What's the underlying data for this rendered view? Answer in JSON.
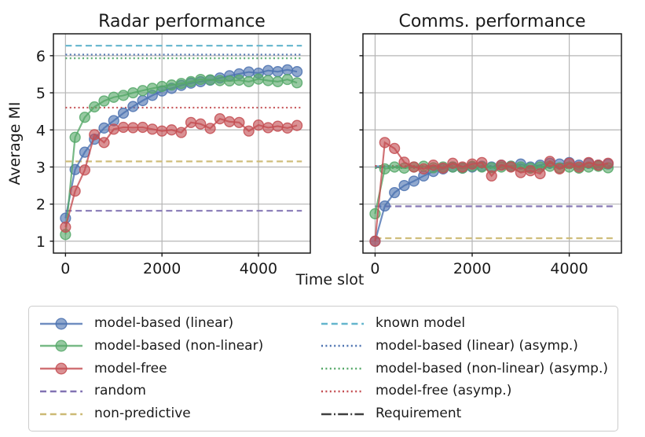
{
  "figure": {
    "xlabel": "Time slot",
    "ylabel": "Average MI"
  },
  "colors": {
    "blue": "#4C72B0",
    "green": "#55A868",
    "red": "#C44E52",
    "purple": "#8172B2",
    "yellow": "#CCB974",
    "cyan": "#64B5CD",
    "dark": "#3f3f3f",
    "grid": "#b5b5b5",
    "spine": "#1a1a1a",
    "text": "#1a1a1a",
    "legend_border": "#cccccc"
  },
  "chart_data": [
    {
      "type": "line",
      "title": "Radar performance",
      "xlabel": "Time slot",
      "ylabel": "Average MI",
      "xlim": [
        -250,
        5075
      ],
      "ylim": [
        0.68,
        6.59
      ],
      "xticks": [
        0,
        2000,
        4000
      ],
      "yticks": [
        1,
        2,
        3,
        4,
        5,
        6
      ],
      "grid": true,
      "show_ytick_labels": true,
      "x": [
        0,
        200,
        400,
        600,
        800,
        1000,
        1200,
        1400,
        1600,
        1800,
        2000,
        2200,
        2400,
        2600,
        2800,
        3000,
        3200,
        3400,
        3600,
        3800,
        4000,
        4200,
        4400,
        4600,
        4800
      ],
      "series": [
        {
          "name": "model-based (linear)",
          "color": "blue",
          "style": "marker",
          "values": [
            1.62,
            2.93,
            3.4,
            3.75,
            4.05,
            4.25,
            4.45,
            4.63,
            4.79,
            4.93,
            5.05,
            5.12,
            5.2,
            5.26,
            5.3,
            5.34,
            5.4,
            5.46,
            5.51,
            5.56,
            5.53,
            5.6,
            5.57,
            5.62,
            5.57
          ]
        },
        {
          "name": "model-based (non-linear)",
          "color": "green",
          "style": "marker",
          "values": [
            1.18,
            3.8,
            4.34,
            4.62,
            4.78,
            4.88,
            4.93,
            5.0,
            5.06,
            5.12,
            5.17,
            5.21,
            5.25,
            5.3,
            5.36,
            5.35,
            5.33,
            5.32,
            5.34,
            5.3,
            5.37,
            5.33,
            5.3,
            5.36,
            5.27
          ]
        },
        {
          "name": "model-free",
          "color": "red",
          "style": "marker",
          "values": [
            1.38,
            2.35,
            2.92,
            3.87,
            3.66,
            4.02,
            4.07,
            4.06,
            4.07,
            4.02,
            3.97,
            4.0,
            3.93,
            4.2,
            4.16,
            4.04,
            4.3,
            4.22,
            4.2,
            3.97,
            4.13,
            4.06,
            4.1,
            4.05,
            4.12
          ]
        }
      ],
      "hlines": [
        {
          "name": "known model",
          "color": "cyan",
          "style": "dashed",
          "y": 6.27,
          "x0": 0,
          "x1": 4900
        },
        {
          "name": "model-based (linear) (asymp.)",
          "color": "blue",
          "style": "dotted",
          "y": 6.03,
          "x0": 0,
          "x1": 4900
        },
        {
          "name": "model-based (non-linear) (asymp.)",
          "color": "green",
          "style": "dotted",
          "y": 5.93,
          "x0": 0,
          "x1": 4900
        },
        {
          "name": "model-free (asymp.)",
          "color": "red",
          "style": "dotted",
          "y": 4.6,
          "x0": 0,
          "x1": 4900
        },
        {
          "name": "non-predictive",
          "color": "yellow",
          "style": "dashed",
          "y": 3.15,
          "x0": 0,
          "x1": 4900
        },
        {
          "name": "random",
          "color": "purple",
          "style": "dashed",
          "y": 1.82,
          "x0": 0,
          "x1": 4900
        }
      ]
    },
    {
      "type": "line",
      "title": "Comms. performance",
      "xlabel": "Time slot",
      "ylabel": "",
      "xlim": [
        -250,
        5075
      ],
      "ylim": [
        0.68,
        6.59
      ],
      "xticks": [
        0,
        2000,
        4000
      ],
      "yticks": [
        1,
        2,
        3,
        4,
        5,
        6
      ],
      "grid": true,
      "show_ytick_labels": false,
      "x": [
        0,
        200,
        400,
        600,
        800,
        1000,
        1200,
        1400,
        1600,
        1800,
        2000,
        2200,
        2400,
        2600,
        2800,
        3000,
        3200,
        3400,
        3600,
        3800,
        4000,
        4200,
        4400,
        4600,
        4800
      ],
      "series": [
        {
          "name": "model-based (linear)",
          "color": "blue",
          "style": "marker",
          "values": [
            1.0,
            1.95,
            2.31,
            2.5,
            2.62,
            2.76,
            2.88,
            2.95,
            3.0,
            2.97,
            3.0,
            3.02,
            3.0,
            3.05,
            3.02,
            3.08,
            3.0,
            3.05,
            3.1,
            3.08,
            3.12,
            3.05,
            3.1,
            3.05,
            3.08
          ]
        },
        {
          "name": "model-based (non-linear)",
          "color": "green",
          "style": "marker",
          "values": [
            1.74,
            2.95,
            3.0,
            2.97,
            3.0,
            3.02,
            2.98,
            3.0,
            3.0,
            2.97,
            3.02,
            3.0,
            2.98,
            3.0,
            3.02,
            3.0,
            2.97,
            3.0,
            3.02,
            2.98,
            3.0,
            2.97,
            3.0,
            3.02,
            2.98
          ]
        },
        {
          "name": "model-free",
          "color": "red",
          "style": "marker",
          "values": [
            1.0,
            3.66,
            3.5,
            3.13,
            3.0,
            2.95,
            3.05,
            2.97,
            3.1,
            3.0,
            3.08,
            3.12,
            2.76,
            3.05,
            3.0,
            2.85,
            2.9,
            2.82,
            3.15,
            2.95,
            3.1,
            3.0,
            3.12,
            3.05,
            3.1
          ]
        }
      ],
      "hlines": [
        {
          "name": "Requirement",
          "color": "dark",
          "style": "dashdot",
          "y": 3.0,
          "x0": 0,
          "x1": 4900
        },
        {
          "name": "known model",
          "color": "cyan",
          "style": "dashed",
          "y": 3.02,
          "x0": 0,
          "x1": 4900
        },
        {
          "name": "model-based (linear) (asymp.)",
          "color": "blue",
          "style": "dotted",
          "y": 3.0,
          "x0": 0,
          "x1": 4900
        },
        {
          "name": "model-based (non-linear) (asymp.)",
          "color": "green",
          "style": "dotted",
          "y": 2.97,
          "x0": 0,
          "x1": 4900
        },
        {
          "name": "model-free (asymp.)",
          "color": "red",
          "style": "dotted",
          "y": 3.03,
          "x0": 0,
          "x1": 4900
        },
        {
          "name": "random",
          "color": "purple",
          "style": "dashed",
          "y": 1.94,
          "x0": 0,
          "x1": 4900
        },
        {
          "name": "non-predictive",
          "color": "yellow",
          "style": "dashed",
          "y": 1.08,
          "x0": 0,
          "x1": 4900
        }
      ]
    }
  ],
  "legend": {
    "columns": [
      [
        {
          "label": "model-based (linear)",
          "color": "blue",
          "style": "marker"
        },
        {
          "label": "model-based (non-linear)",
          "color": "green",
          "style": "marker"
        },
        {
          "label": "model-free",
          "color": "red",
          "style": "marker"
        },
        {
          "label": "random",
          "color": "purple",
          "style": "dashed"
        },
        {
          "label": "non-predictive",
          "color": "yellow",
          "style": "dashed"
        }
      ],
      [
        {
          "label": "known model",
          "color": "cyan",
          "style": "dashed"
        },
        {
          "label": "model-based (linear) (asymp.)",
          "color": "blue",
          "style": "dotted"
        },
        {
          "label": "model-based (non-linear) (asymp.)",
          "color": "green",
          "style": "dotted"
        },
        {
          "label": "model-free (asymp.)",
          "color": "red",
          "style": "dotted"
        },
        {
          "label": "Requirement",
          "color": "dark",
          "style": "dashdot"
        }
      ]
    ]
  }
}
